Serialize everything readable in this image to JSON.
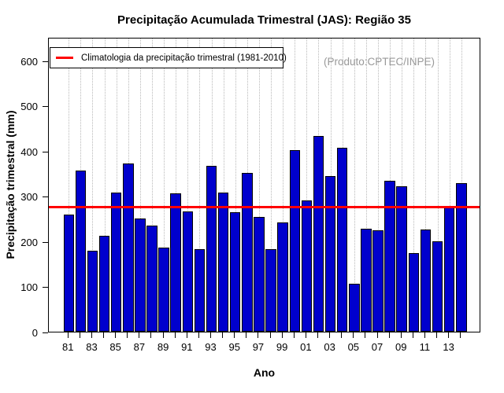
{
  "title": "Precipitação Acumulada Trimestral (JAS): Região 35",
  "watermark": "(Produto:CPTEC/INPE)",
  "legend": {
    "label": "Climatologia da precipitação trimestral (1981-2010)"
  },
  "axes": {
    "x_label": "Ano",
    "y_label": "Precipitação trimestral (mm)"
  },
  "chart_data": {
    "type": "bar",
    "title": "Precipitação Acumulada Trimestral (JAS): Região 35",
    "xlabel": "Ano",
    "ylabel": "Precipitação trimestral (mm)",
    "ylim": [
      0,
      650
    ],
    "yticks": [
      0,
      100,
      200,
      300,
      400,
      500,
      600
    ],
    "grid": "vertical dotted gridlines at each year",
    "legend_position": "top-left",
    "years": [
      1981,
      1982,
      1983,
      1984,
      1985,
      1986,
      1987,
      1988,
      1989,
      1990,
      1991,
      1992,
      1993,
      1994,
      1995,
      1996,
      1997,
      1998,
      1999,
      2000,
      2001,
      2002,
      2003,
      2004,
      2005,
      2006,
      2007,
      2008,
      2009,
      2010,
      2011,
      2012,
      2013,
      2014
    ],
    "values": [
      260,
      357,
      180,
      212,
      309,
      372,
      251,
      235,
      186,
      306,
      267,
      183,
      367,
      308,
      265,
      351,
      254,
      183,
      242,
      402,
      291,
      434,
      344,
      408,
      106,
      229,
      225,
      335,
      322,
      175,
      226,
      200,
      277,
      329
    ],
    "x_tick_labels": [
      "81",
      "83",
      "85",
      "87",
      "89",
      "91",
      "93",
      "95",
      "97",
      "99",
      "01",
      "03",
      "05",
      "07",
      "09",
      "11",
      "13"
    ],
    "climatology_line": {
      "label": "Climatologia da precipitação trimestral (1981-2010)",
      "value": 280,
      "color": "#FF0000"
    },
    "colors": {
      "bar_fill": "#0000CD",
      "bar_border": "#000000",
      "climatology_line": "#FF0000",
      "gridline": "#B9B9B9",
      "watermark_text": "#999999"
    }
  }
}
